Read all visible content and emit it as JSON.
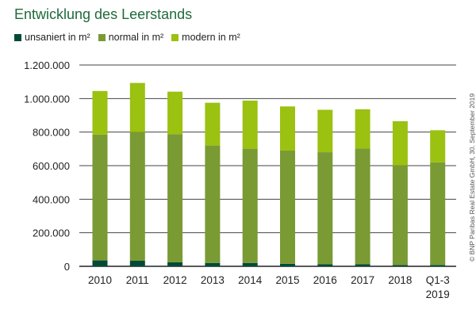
{
  "chart_data": {
    "type": "bar",
    "stacked": true,
    "title": "Entwicklung des Leerstands",
    "categories": [
      "2010",
      "2011",
      "2012",
      "2013",
      "2014",
      "2015",
      "2016",
      "2017",
      "2018",
      "Q1-3 2019"
    ],
    "series": [
      {
        "name": "unsaniert in m²",
        "color": "#004a37",
        "values": [
          35000,
          33000,
          24000,
          20000,
          20000,
          15000,
          13000,
          12000,
          8000,
          8000
        ]
      },
      {
        "name": "normal in m²",
        "color": "#7a9a34",
        "values": [
          750000,
          767000,
          764000,
          700000,
          681000,
          675000,
          667000,
          690000,
          594000,
          612000
        ]
      },
      {
        "name": "modern in m²",
        "color": "#9bc111",
        "values": [
          260000,
          293000,
          253000,
          255000,
          287000,
          263000,
          253000,
          234000,
          263000,
          191000
        ]
      }
    ],
    "ylim": [
      0,
      1200000
    ],
    "yticks": [
      "0",
      "200.000",
      "400.000",
      "600.000",
      "800.000",
      "1.000.000",
      "1.200.000"
    ],
    "grid": true,
    "legend": "top-left"
  },
  "source": "© BNP Paribas Real Estate GmbH, 30. September 2019"
}
